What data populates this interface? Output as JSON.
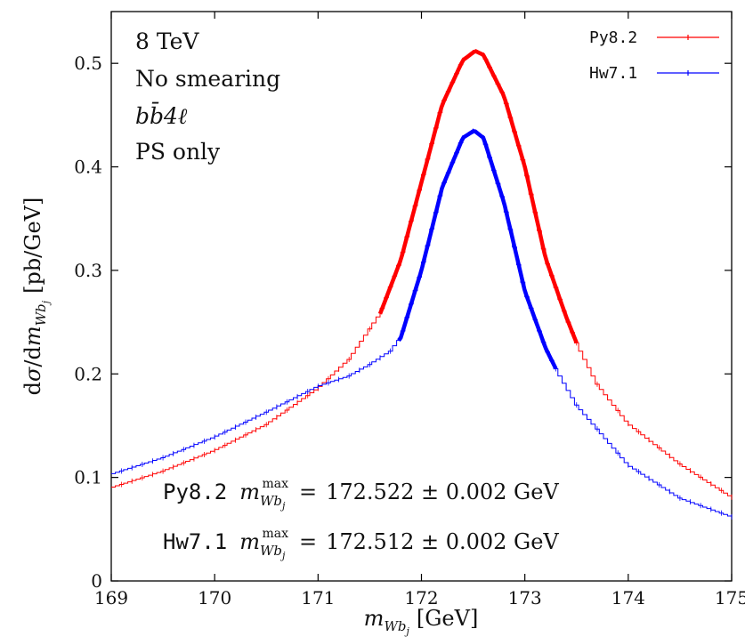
{
  "chart_data": {
    "type": "line",
    "xlabel": "m_{Wb_j} [GeV]",
    "ylabel": "dσ/dm_{Wb_j} [pb/GeV]",
    "xlim": [
      169,
      175
    ],
    "ylim": [
      0,
      0.55
    ],
    "xticks": [
      "169",
      "170",
      "171",
      "172",
      "173",
      "174",
      "175"
    ],
    "yticks": [
      "0",
      "0.1",
      "0.2",
      "0.3",
      "0.4",
      "0.5"
    ],
    "grid": false,
    "legend_position": "top-right",
    "annotations": [
      "8 TeV",
      "No smearing",
      "bb̄4ℓ",
      "PS only"
    ],
    "fit_results": [
      {
        "generator": "Py8.2",
        "value": "172.522 ± 0.002 GeV"
      },
      {
        "generator": "Hw7.1",
        "value": "172.512 ± 0.002 GeV"
      }
    ],
    "series": [
      {
        "name": "Py8.2",
        "color": "#ff0000",
        "x": [
          169.0,
          169.5,
          170.0,
          170.5,
          171.0,
          171.3,
          171.6,
          171.8,
          172.0,
          172.2,
          172.4,
          172.52,
          172.6,
          172.8,
          173.0,
          173.2,
          173.4,
          173.5,
          173.7,
          174.0,
          174.5,
          175.0
        ],
        "y": [
          0.09,
          0.106,
          0.126,
          0.151,
          0.186,
          0.214,
          0.258,
          0.31,
          0.385,
          0.46,
          0.503,
          0.512,
          0.508,
          0.468,
          0.4,
          0.312,
          0.255,
          0.23,
          0.19,
          0.152,
          0.113,
          0.081
        ]
      },
      {
        "name": "Hw7.1",
        "color": "#0000ff",
        "x": [
          169.0,
          169.5,
          170.0,
          170.5,
          171.0,
          171.3,
          171.5,
          171.7,
          171.8,
          172.0,
          172.2,
          172.4,
          172.51,
          172.6,
          172.8,
          173.0,
          173.2,
          173.3,
          173.5,
          174.0,
          174.5,
          175.0
        ],
        "y": [
          0.103,
          0.119,
          0.139,
          0.163,
          0.188,
          0.198,
          0.209,
          0.222,
          0.235,
          0.3,
          0.38,
          0.428,
          0.435,
          0.428,
          0.365,
          0.28,
          0.225,
          0.205,
          0.17,
          0.112,
          0.08,
          0.062
        ]
      }
    ],
    "fit_ranges": [
      {
        "name": "Py8.2",
        "x": [
          171.6,
          173.5
        ]
      },
      {
        "name": "Hw7.1",
        "x": [
          171.78,
          173.3
        ]
      }
    ]
  }
}
